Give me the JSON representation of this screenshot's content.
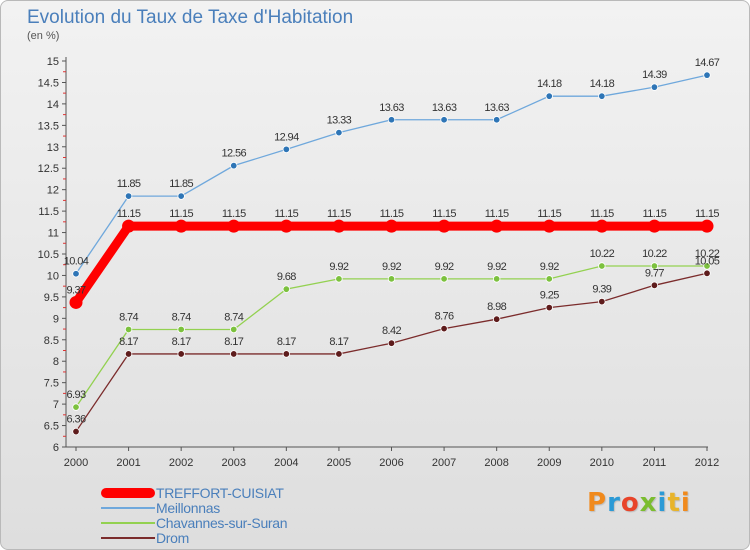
{
  "header": {
    "title": "Evolution du Taux de Taxe d'Habitation",
    "subtitle": "(en %)"
  },
  "logo": {
    "text": "Proxiti"
  },
  "legend": [
    {
      "label": "TREFFORT-CUISIAT",
      "color": "#ff0000"
    },
    {
      "label": "Meillonnas",
      "color": "#6fa8dc"
    },
    {
      "label": "Chavannes-sur-Suran",
      "color": "#93d150"
    },
    {
      "label": "Drom",
      "color": "#7b2c2c"
    }
  ],
  "chart_data": {
    "type": "line",
    "title": "Evolution du Taux de Taxe d'Habitation",
    "ylabel": "(en %)",
    "x": [
      "2000",
      "2001",
      "2002",
      "2003",
      "2004",
      "2005",
      "2006",
      "2007",
      "2008",
      "2009",
      "2010",
      "2011",
      "2012"
    ],
    "ylim": [
      6,
      15
    ],
    "ytick_step": 0.5,
    "y_tick_labels": [
      "6",
      "6.5",
      "7",
      "7.5",
      "8",
      "8.5",
      "9",
      "9.5",
      "10",
      "10.5",
      "11",
      "11.5",
      "12",
      "12.5",
      "13",
      "13.5",
      "14",
      "14.5",
      "15"
    ],
    "grid": false,
    "legend_position": "bottom-left",
    "series": [
      {
        "name": "TREFFORT-CUISIAT",
        "color": "#ff0000",
        "emphasis": true,
        "values": [
          9.37,
          11.15,
          11.15,
          11.15,
          11.15,
          11.15,
          11.15,
          11.15,
          11.15,
          11.15,
          11.15,
          11.15,
          11.15
        ],
        "labels": [
          "9.37",
          "11.15",
          "11.15",
          "11.15",
          "11.15",
          "11.15",
          "11.15",
          "11.15",
          "11.15",
          "11.15",
          "11.15",
          "11.15",
          "11.15"
        ]
      },
      {
        "name": "Meillonnas",
        "color": "#6fa8dc",
        "marker": "#2e75b6",
        "values": [
          10.04,
          11.85,
          11.85,
          12.56,
          12.94,
          13.33,
          13.63,
          13.63,
          13.63,
          14.18,
          14.18,
          14.39,
          14.67
        ],
        "labels": [
          "10.04",
          "11.85",
          "11.85",
          "12.56",
          "12.94",
          "13.33",
          "13.63",
          "13.63",
          "13.63",
          "14.18",
          "14.18",
          "14.39",
          "14.67"
        ]
      },
      {
        "name": "Chavannes-sur-Suran",
        "color": "#93d150",
        "marker": "#7cc13e",
        "values": [
          6.93,
          8.74,
          8.74,
          8.74,
          9.68,
          9.92,
          9.92,
          9.92,
          9.92,
          9.92,
          10.22,
          10.22,
          10.22
        ],
        "labels": [
          "6.93",
          "8.74",
          "8.74",
          "8.74",
          "9.68",
          "9.92",
          "9.92",
          "9.92",
          "9.92",
          "9.92",
          "10.22",
          "10.22",
          "10.22"
        ]
      },
      {
        "name": "Drom",
        "color": "#7b2c2c",
        "marker": "#5e1c1c",
        "values": [
          6.36,
          8.17,
          8.17,
          8.17,
          8.17,
          8.17,
          8.42,
          8.76,
          8.98,
          9.25,
          9.39,
          9.77,
          10.05
        ],
        "labels": [
          "6.36",
          "8.17",
          "8.17",
          "8.17",
          "8.17",
          "8.17",
          "8.42",
          "8.76",
          "8.98",
          "9.25",
          "9.39",
          "9.77",
          "10.05"
        ]
      }
    ]
  }
}
